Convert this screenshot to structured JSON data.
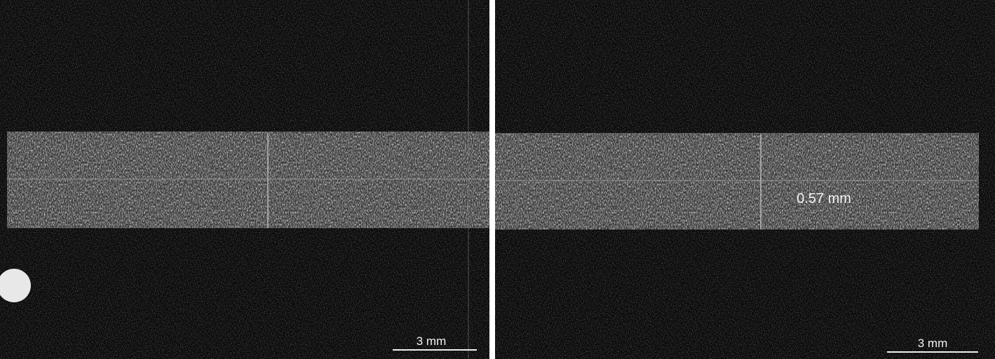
{
  "panels": [
    {
      "scale_bar": "3 mm"
    },
    {
      "scale_bar": "3 mm",
      "annotation": "0.57 mm"
    }
  ]
}
